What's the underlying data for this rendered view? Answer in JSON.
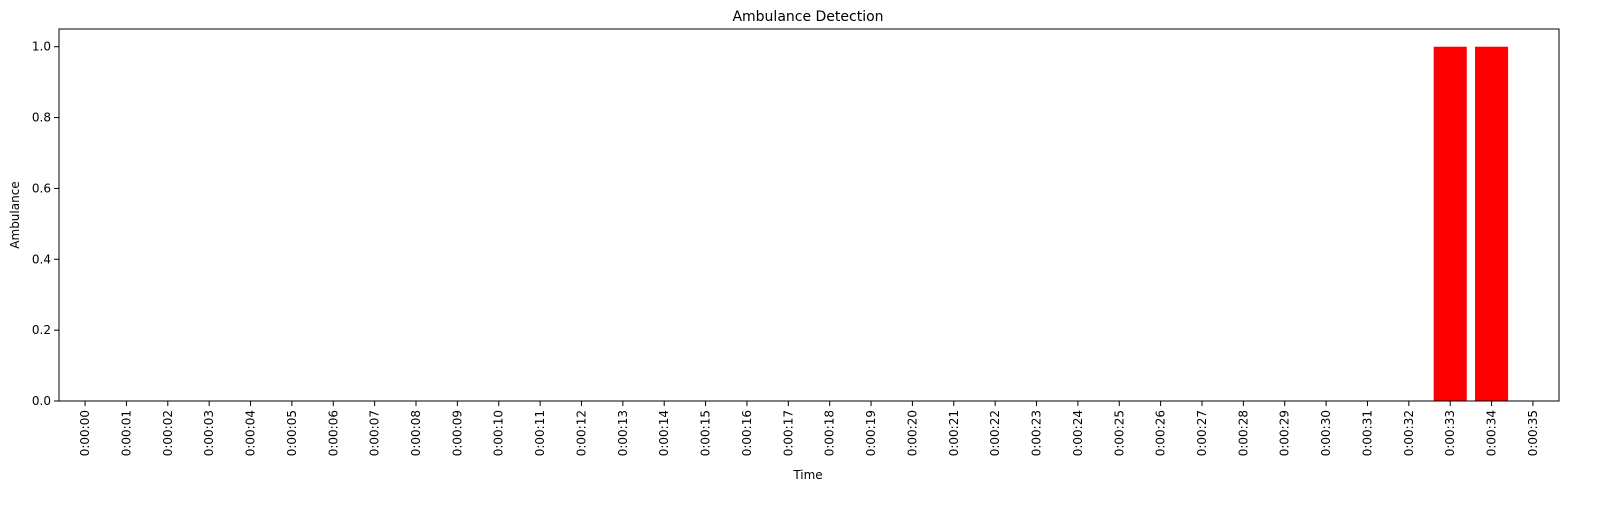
{
  "chart_data": {
    "type": "bar",
    "title": "Ambulance Detection",
    "xlabel": "Time",
    "ylabel": "Ambulance",
    "ylim": [
      0,
      1.05
    ],
    "yticks": [
      "0.0",
      "0.2",
      "0.4",
      "0.6",
      "0.8",
      "1.0"
    ],
    "categories": [
      "0:00:00",
      "0:00:01",
      "0:00:02",
      "0:00:03",
      "0:00:04",
      "0:00:05",
      "0:00:06",
      "0:00:07",
      "0:00:08",
      "0:00:09",
      "0:00:10",
      "0:00:11",
      "0:00:12",
      "0:00:13",
      "0:00:14",
      "0:00:15",
      "0:00:16",
      "0:00:17",
      "0:00:18",
      "0:00:19",
      "0:00:20",
      "0:00:21",
      "0:00:22",
      "0:00:23",
      "0:00:24",
      "0:00:25",
      "0:00:26",
      "0:00:27",
      "0:00:28",
      "0:00:29",
      "0:00:30",
      "0:00:31",
      "0:00:32",
      "0:00:33",
      "0:00:34",
      "0:00:35"
    ],
    "values": [
      0,
      0,
      0,
      0,
      0,
      0,
      0,
      0,
      0,
      0,
      0,
      0,
      0,
      0,
      0,
      0,
      0,
      0,
      0,
      0,
      0,
      0,
      0,
      0,
      0,
      0,
      0,
      0,
      0,
      0,
      0,
      0,
      0,
      1,
      1,
      0
    ],
    "bar_color": "#ff0000",
    "grid": false,
    "legend": false
  }
}
